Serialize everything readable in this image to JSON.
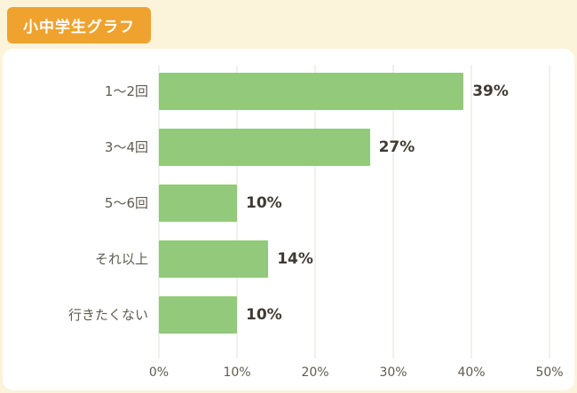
{
  "header": {
    "title": "小中学生グラフ"
  },
  "colors": {
    "background": "#fbf3da",
    "banner": "#f0a22f",
    "bar": "#93c97a",
    "panel": "#ffffff",
    "gridline": "#e5e1d6",
    "value_text": "#3f3b32",
    "label_text": "#5f5b50"
  },
  "chart_data": {
    "type": "bar",
    "orientation": "horizontal",
    "title": "小中学生グラフ",
    "categories": [
      "1〜2回",
      "3〜4回",
      "5〜6回",
      "それ以上",
      "行きたくない"
    ],
    "values": [
      39,
      27,
      10,
      14,
      10
    ],
    "value_labels": [
      "39%",
      "27%",
      "10%",
      "14%",
      "10%"
    ],
    "xlabel": "",
    "ylabel": "",
    "xlim": [
      0,
      50
    ],
    "x_ticks": [
      "0%",
      "10%",
      "20%",
      "30%",
      "40%",
      "50%"
    ],
    "x_tick_values": [
      0,
      10,
      20,
      30,
      40,
      50
    ],
    "grid": true,
    "legend": false
  }
}
